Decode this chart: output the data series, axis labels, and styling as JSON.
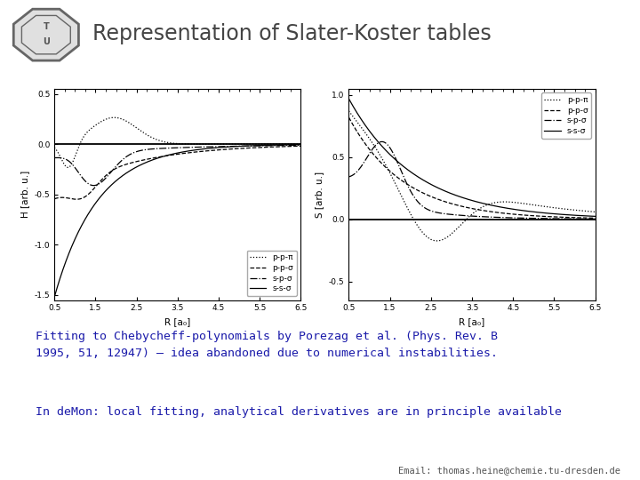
{
  "title": "Representation of Slater-Koster tables",
  "title_color": "#444444",
  "header_bar_color": "#3355bb",
  "bg_color": "#ffffff",
  "text1": "Fitting to Chebycheff-polynomials by Porezag et al. (Phys. Rev. B\n1995, 51, 12947) – idea abandoned due to numerical instabilities.",
  "text2": "In deMon: local fitting, analytical derivatives are in principle available",
  "text3": "Email: thomas.heine@chemie.tu-dresden.de",
  "text_color": "#1a1aaa",
  "left_ylabel": "H [arb. u.]",
  "right_ylabel": "S [arb. u.]",
  "xlabel": "R [a₀]",
  "left_ylim": [
    -1.55,
    0.55
  ],
  "right_ylim": [
    -0.65,
    1.05
  ],
  "xlim": [
    0.5,
    6.5
  ],
  "left_yticks": [
    -1.5,
    -1.0,
    -0.5,
    0.0,
    0.5
  ],
  "right_yticks": [
    -0.5,
    0.0,
    0.5,
    1.0
  ],
  "xticks": [
    0.5,
    1.5,
    2.5,
    3.5,
    4.5,
    5.5,
    6.5
  ],
  "xtick_labels": [
    "0.5",
    "1.5",
    "2.5",
    "3.5",
    "4.5",
    "5.5",
    "6.5"
  ],
  "legend_left": [
    "p-p-π",
    "p-p-σ",
    "s-p-σ",
    "s-s-σ"
  ],
  "legend_right": [
    "p-p-π",
    "p-p-σ",
    "s-p-σ",
    "s-s-σ"
  ]
}
